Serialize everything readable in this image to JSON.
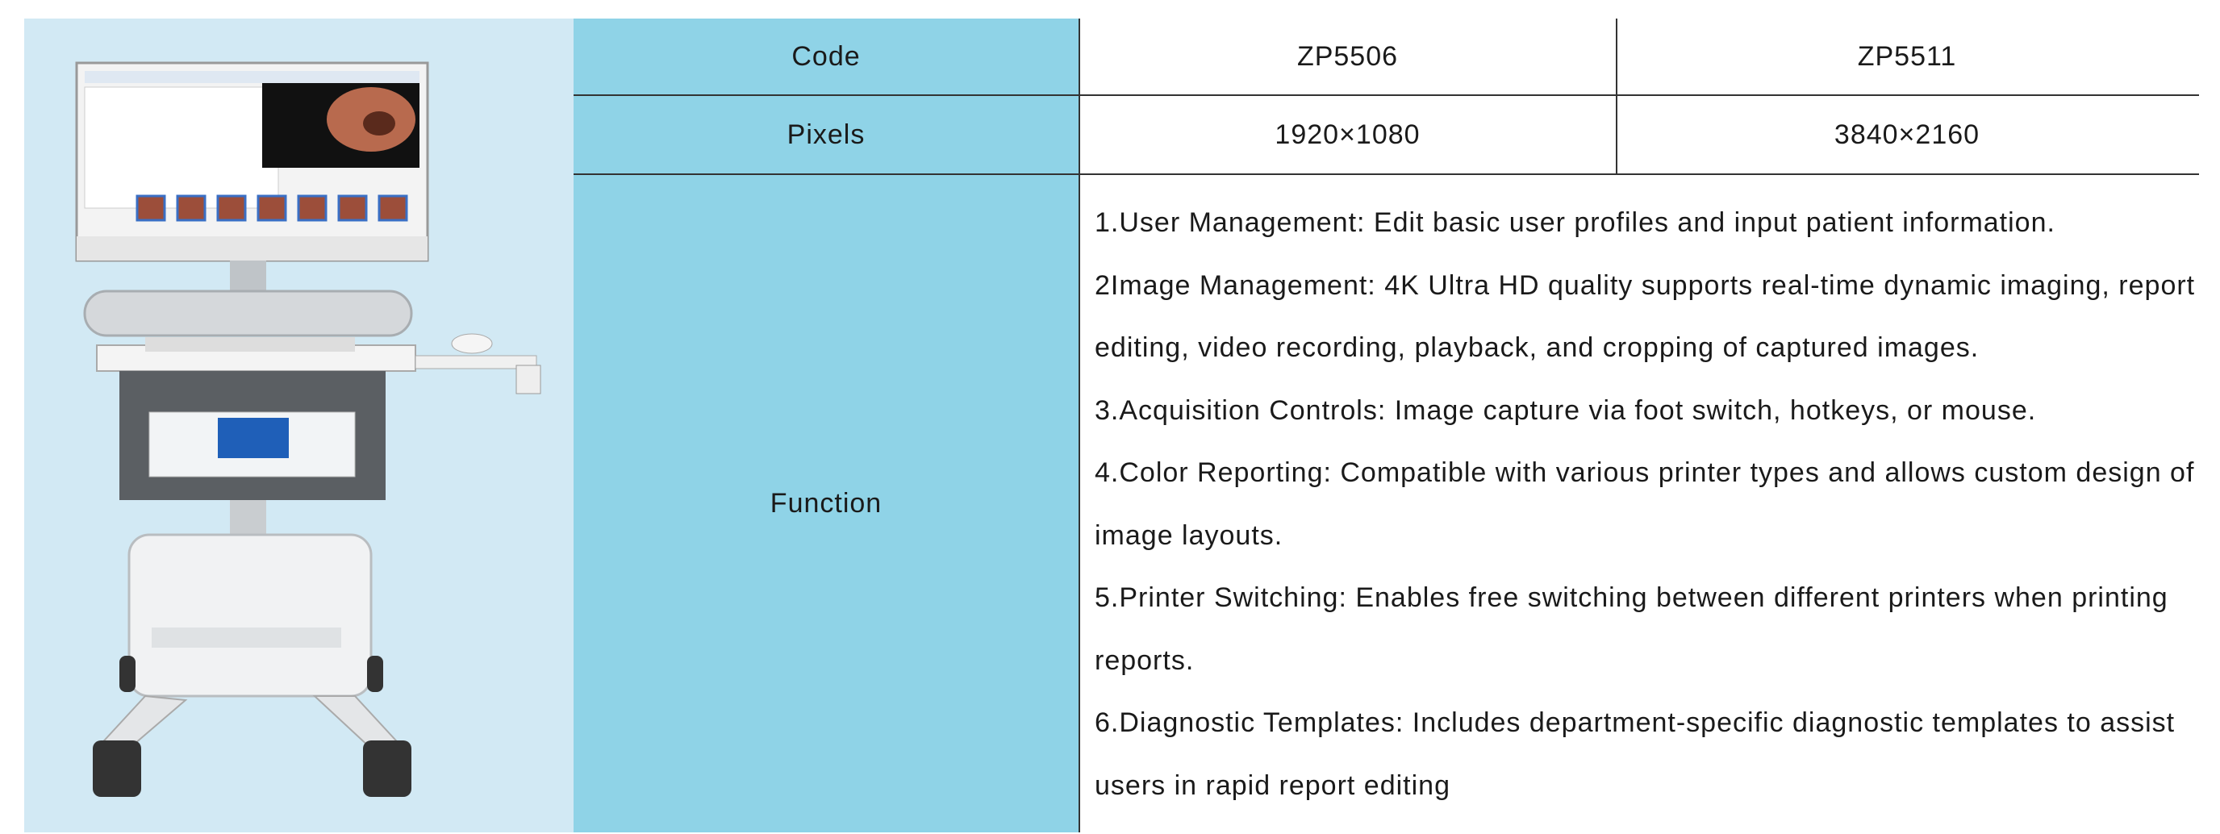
{
  "table": {
    "rows": [
      {
        "label": "Code",
        "values": [
          "ZP5506",
          "ZP5511"
        ]
      },
      {
        "label": "Pixels",
        "values": [
          "1920×1080",
          "3840×2160"
        ]
      },
      {
        "label": "Function",
        "items": [
          "1.User Management: Edit basic user profiles and input patient information.",
          "2Image Management: 4K Ultra HD quality supports real-time dynamic imaging, report editing, video recording, playback, and cropping of captured images.",
          "3.Acquisition Controls: Image capture via foot switch, hotkeys, or mouse.",
          "4.Color Reporting: Compatible with various printer types and allows custom design of image layouts.",
          "5.Printer Switching: Enables free switching between different printers when printing reports.",
          "6.Diagnostic Templates: Includes department-specific diagnostic templates to assist users in rapid report editing"
        ]
      }
    ]
  }
}
